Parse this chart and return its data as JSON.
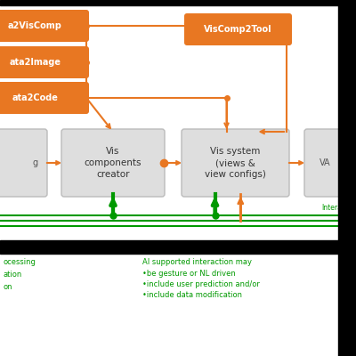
{
  "orange_color": "#E87722",
  "gray_color": "#DEDEDE",
  "gray_border": "#BBBBBB",
  "green_color": "#009900",
  "white": "#FFFFFF",
  "black": "#000000",
  "bg_color": "#FFFFFF",
  "annotation_text": "AI supported interaction may\n•be gesture or NL driven\n•include user prediction and/or\n•include data modification",
  "interaction_label": "Interactio",
  "bottom_left_lines": [
    "ocessing",
    "ation",
    "on"
  ]
}
